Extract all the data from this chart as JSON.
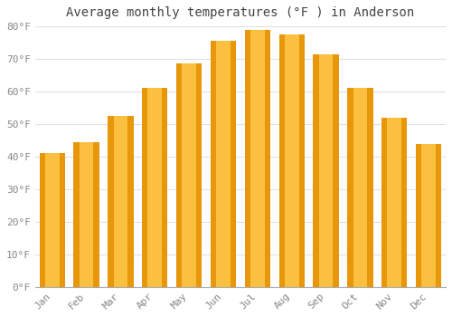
{
  "title": "Average monthly temperatures (°F ) in Anderson",
  "months": [
    "Jan",
    "Feb",
    "Mar",
    "Apr",
    "May",
    "Jun",
    "Jul",
    "Aug",
    "Sep",
    "Oct",
    "Nov",
    "Dec"
  ],
  "values": [
    41,
    44.5,
    52.5,
    61,
    68.5,
    75.5,
    79,
    77.5,
    71.5,
    61,
    52,
    44
  ],
  "bar_color_center": "#FFC84A",
  "bar_color_edge": "#E8960A",
  "ylim": [
    0,
    80
  ],
  "yticks": [
    0,
    10,
    20,
    30,
    40,
    50,
    60,
    70,
    80
  ],
  "ytick_labels": [
    "0°F",
    "10°F",
    "20°F",
    "30°F",
    "40°F",
    "50°F",
    "60°F",
    "70°F",
    "80°F"
  ],
  "plot_bg_color": "#ffffff",
  "fig_bg_color": "#ffffff",
  "grid_color": "#e0e0e8",
  "title_fontsize": 10,
  "tick_fontsize": 8,
  "bar_width": 0.75
}
